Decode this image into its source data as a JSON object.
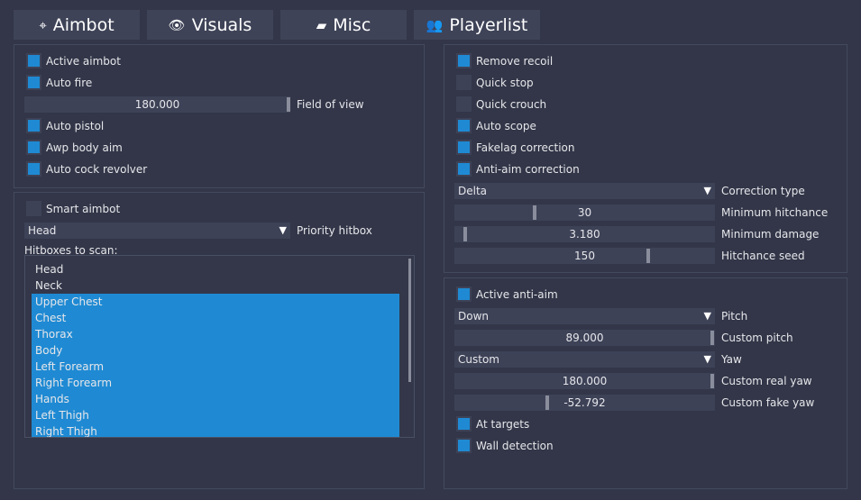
{
  "tabs": [
    "Aimbot",
    "Visuals",
    "Misc",
    "Playerlist"
  ],
  "panels": [
    {
      "rows": [
        {
          "kind": "checkbox",
          "label": "Active aimbot",
          "checked": true
        },
        {
          "kind": "checkbox",
          "label": "Auto fire",
          "checked": true
        },
        {
          "kind": "slider",
          "value": "180.000",
          "label": "Field of view"
        },
        {
          "kind": "checkbox",
          "label": "Auto pistol",
          "checked": true
        },
        {
          "kind": "checkbox",
          "label": "Awp body aim",
          "checked": true
        },
        {
          "kind": "checkbox",
          "label": "Auto cock revolver",
          "checked": true
        }
      ]
    },
    {
      "rows": [
        {
          "kind": "checkbox",
          "label": "Smart aimbot",
          "checked": false
        },
        {
          "kind": "dropdown",
          "value": "Head",
          "label": "Priority hitbox"
        },
        {
          "kind": "text",
          "label": "Hitboxes to scan:"
        },
        {
          "kind": "list",
          "items": [
            {
              "label": "Head",
              "selected": false
            },
            {
              "label": "Neck",
              "selected": false
            },
            {
              "label": "Upper Chest",
              "selected": true
            },
            {
              "label": "Chest",
              "selected": true
            },
            {
              "label": "Thorax",
              "selected": true
            },
            {
              "label": "Body",
              "selected": true
            },
            {
              "label": "Left Forearm",
              "selected": true
            },
            {
              "label": "Right Forearm",
              "selected": true
            },
            {
              "label": "Hands",
              "selected": true
            },
            {
              "label": "Left Thigh",
              "selected": true
            },
            {
              "label": "Right Thigh",
              "selected": true
            }
          ]
        }
      ]
    },
    {
      "rows": [
        {
          "kind": "checkbox",
          "label": "Remove recoil",
          "checked": true
        },
        {
          "kind": "checkbox",
          "label": "Quick stop",
          "checked": false
        },
        {
          "kind": "checkbox",
          "label": "Quick crouch",
          "checked": false
        },
        {
          "kind": "checkbox",
          "label": "Auto scope",
          "checked": true
        },
        {
          "kind": "checkbox",
          "label": "Fakelag correction",
          "checked": true
        },
        {
          "kind": "checkbox",
          "label": "Anti-aim correction",
          "checked": true
        },
        {
          "kind": "dropdown",
          "value": "Delta",
          "label": "Correction type"
        },
        {
          "kind": "slider",
          "value": "30",
          "label": "Minimum hitchance"
        },
        {
          "kind": "slider",
          "value": "3.180",
          "label": "Minimum damage"
        },
        {
          "kind": "slider",
          "value": "150",
          "label": "Hitchance seed"
        }
      ]
    },
    {
      "rows": [
        {
          "kind": "checkbox",
          "label": "Active anti-aim",
          "checked": true
        },
        {
          "kind": "dropdown",
          "value": "Down",
          "label": "Pitch"
        },
        {
          "kind": "slider",
          "value": "89.000",
          "label": "Custom pitch"
        },
        {
          "kind": "dropdown",
          "value": "Custom",
          "label": "Yaw"
        },
        {
          "kind": "slider",
          "value": "180.000",
          "label": "Custom real yaw"
        },
        {
          "kind": "slider",
          "value": "-52.792",
          "label": "Custom fake yaw"
        },
        {
          "kind": "checkbox",
          "label": "At targets",
          "checked": true
        },
        {
          "kind": "checkbox",
          "label": "Wall detection",
          "checked": true
        }
      ]
    }
  ]
}
